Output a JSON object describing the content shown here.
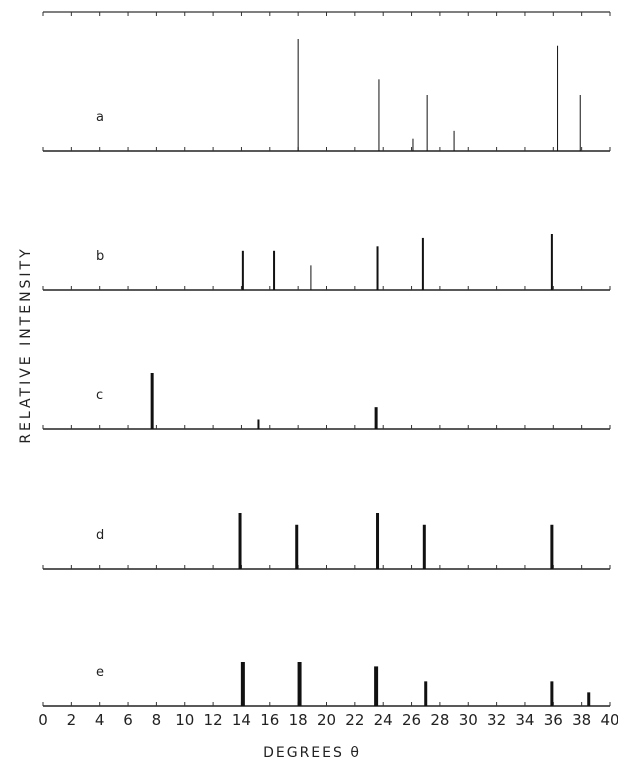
{
  "chart_data": {
    "type": "bar",
    "xlabel": "DEGREES θ",
    "ylabel": "RELATIVE INTENSITY",
    "xlim": [
      0,
      40
    ],
    "xticks": [
      "0",
      "2",
      "4",
      "6",
      "8",
      "10",
      "12",
      "14",
      "16",
      "18",
      "20",
      "22",
      "24",
      "26",
      "28",
      "30",
      "32",
      "34",
      "36",
      "38",
      "40"
    ],
    "panels": [
      {
        "label": "a",
        "peaks": [
          {
            "x": 18.0,
            "y": 1.0,
            "w": 1
          },
          {
            "x": 23.7,
            "y": 0.64,
            "w": 1
          },
          {
            "x": 26.1,
            "y": 0.11,
            "w": 1
          },
          {
            "x": 27.1,
            "y": 0.5,
            "w": 1
          },
          {
            "x": 29.0,
            "y": 0.18,
            "w": 1
          },
          {
            "x": 36.3,
            "y": 0.94,
            "w": 1
          },
          {
            "x": 37.9,
            "y": 0.5,
            "w": 1
          }
        ]
      },
      {
        "label": "b",
        "peaks": [
          {
            "x": 14.1,
            "y": 0.7,
            "w": 2
          },
          {
            "x": 16.3,
            "y": 0.7,
            "w": 2
          },
          {
            "x": 18.9,
            "y": 0.44,
            "w": 1
          },
          {
            "x": 23.6,
            "y": 0.78,
            "w": 2
          },
          {
            "x": 26.8,
            "y": 0.93,
            "w": 2
          },
          {
            "x": 35.9,
            "y": 1.0,
            "w": 2
          }
        ]
      },
      {
        "label": "c",
        "peaks": [
          {
            "x": 7.7,
            "y": 1.0,
            "w": 3
          },
          {
            "x": 15.2,
            "y": 0.17,
            "w": 2
          },
          {
            "x": 23.5,
            "y": 0.39,
            "w": 3
          }
        ]
      },
      {
        "label": "d",
        "peaks": [
          {
            "x": 13.9,
            "y": 1.0,
            "w": 3
          },
          {
            "x": 17.9,
            "y": 0.79,
            "w": 3
          },
          {
            "x": 23.6,
            "y": 1.0,
            "w": 3
          },
          {
            "x": 26.9,
            "y": 0.79,
            "w": 3
          },
          {
            "x": 35.9,
            "y": 0.79,
            "w": 3
          }
        ]
      },
      {
        "label": "e",
        "peaks": [
          {
            "x": 14.1,
            "y": 1.0,
            "w": 4
          },
          {
            "x": 18.1,
            "y": 1.0,
            "w": 4
          },
          {
            "x": 23.5,
            "y": 0.9,
            "w": 4
          },
          {
            "x": 27.0,
            "y": 0.56,
            "w": 3
          },
          {
            "x": 35.9,
            "y": 0.56,
            "w": 3
          },
          {
            "x": 38.5,
            "y": 0.31,
            "w": 3
          }
        ]
      }
    ]
  }
}
